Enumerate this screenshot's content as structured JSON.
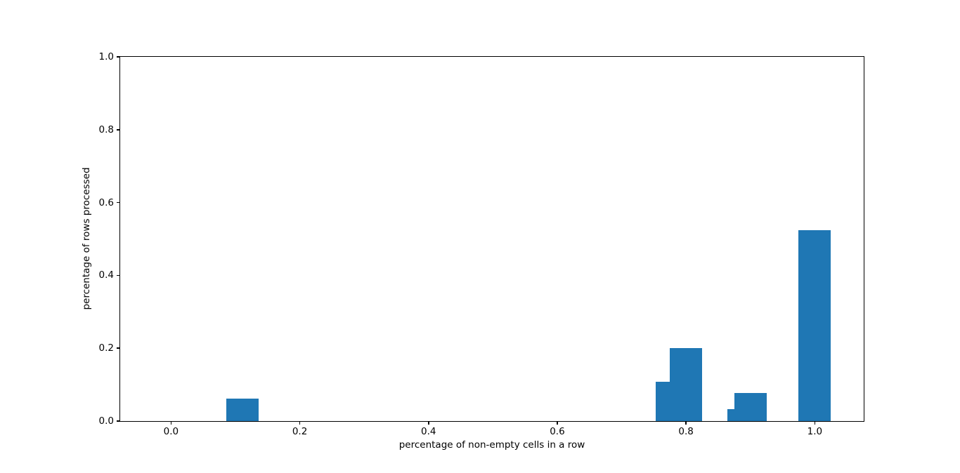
{
  "figure": {
    "background_color": "#ffffff",
    "frame_color": "#000000",
    "tick_color": "#000000",
    "text_color": "#000000"
  },
  "chart_data": {
    "type": "bar",
    "title": "",
    "xlabel": "percentage of non-empty cells in a row",
    "ylabel": "percentage of rows processed",
    "bar_color": "#1f77b4",
    "bar_width": 0.05,
    "bars": [
      {
        "x": 0.111,
        "value": 0.061
      },
      {
        "x": 0.778,
        "value": 0.108
      },
      {
        "x": 0.8,
        "value": 0.201
      },
      {
        "x": 0.889,
        "value": 0.032
      },
      {
        "x": 0.9,
        "value": 0.078
      },
      {
        "x": 1.0,
        "value": 0.524
      }
    ],
    "xlim": [
      -0.079,
      1.076
    ],
    "ylim": [
      0.0,
      1.0
    ],
    "xticks": [
      {
        "value": 0.0,
        "label": "0.0"
      },
      {
        "value": 0.2,
        "label": "0.2"
      },
      {
        "value": 0.4,
        "label": "0.4"
      },
      {
        "value": 0.6,
        "label": "0.6"
      },
      {
        "value": 0.8,
        "label": "0.8"
      },
      {
        "value": 1.0,
        "label": "1.0"
      }
    ],
    "yticks": [
      {
        "value": 0.0,
        "label": "0.0"
      },
      {
        "value": 0.2,
        "label": "0.2"
      },
      {
        "value": 0.4,
        "label": "0.4"
      },
      {
        "value": 0.6,
        "label": "0.6"
      },
      {
        "value": 0.8,
        "label": "0.8"
      },
      {
        "value": 1.0,
        "label": "1.0"
      }
    ],
    "grid": false,
    "legend": null
  }
}
